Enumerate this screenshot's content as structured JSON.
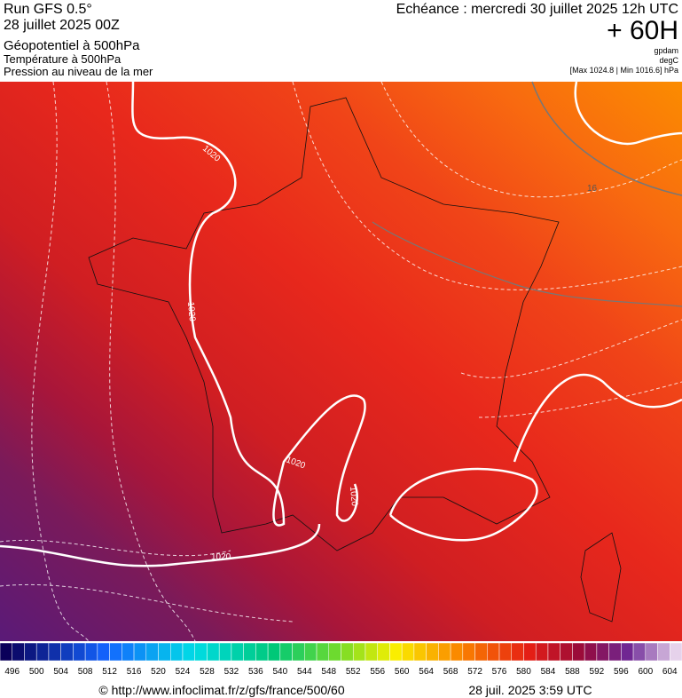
{
  "header": {
    "run": "Run GFS 0.5°",
    "run_date": "28 juillet 2025 00Z",
    "field1": "Géopotentiel à 500hPa",
    "field2": "Température à 500hPa",
    "field3": "Pression au niveau de la mer",
    "valid": "Echéance : mercredi 30 juillet 2025 12h UTC",
    "lead": "+ 60H",
    "unit1": "gpdam",
    "unit2": "degC",
    "range": "[Max 1024.8 | Min 1016.6] hPa"
  },
  "map": {
    "isobar_labels": [
      "1020",
      "1020",
      "1020",
      "1020",
      "1020"
    ],
    "isotherm_label": "16"
  },
  "scale": {
    "labels": [
      "496",
      "500",
      "504",
      "508",
      "512",
      "516",
      "520",
      "524",
      "528",
      "532",
      "536",
      "540",
      "544",
      "548",
      "552",
      "556",
      "560",
      "564",
      "568",
      "572",
      "576",
      "580",
      "584",
      "588",
      "592",
      "596",
      "600",
      "604"
    ]
  },
  "footer": {
    "source": "© http://www.infoclimat.fr/z/gfs/france/500/60",
    "timestamp": "28 juil. 2025  3:59 UTC"
  }
}
